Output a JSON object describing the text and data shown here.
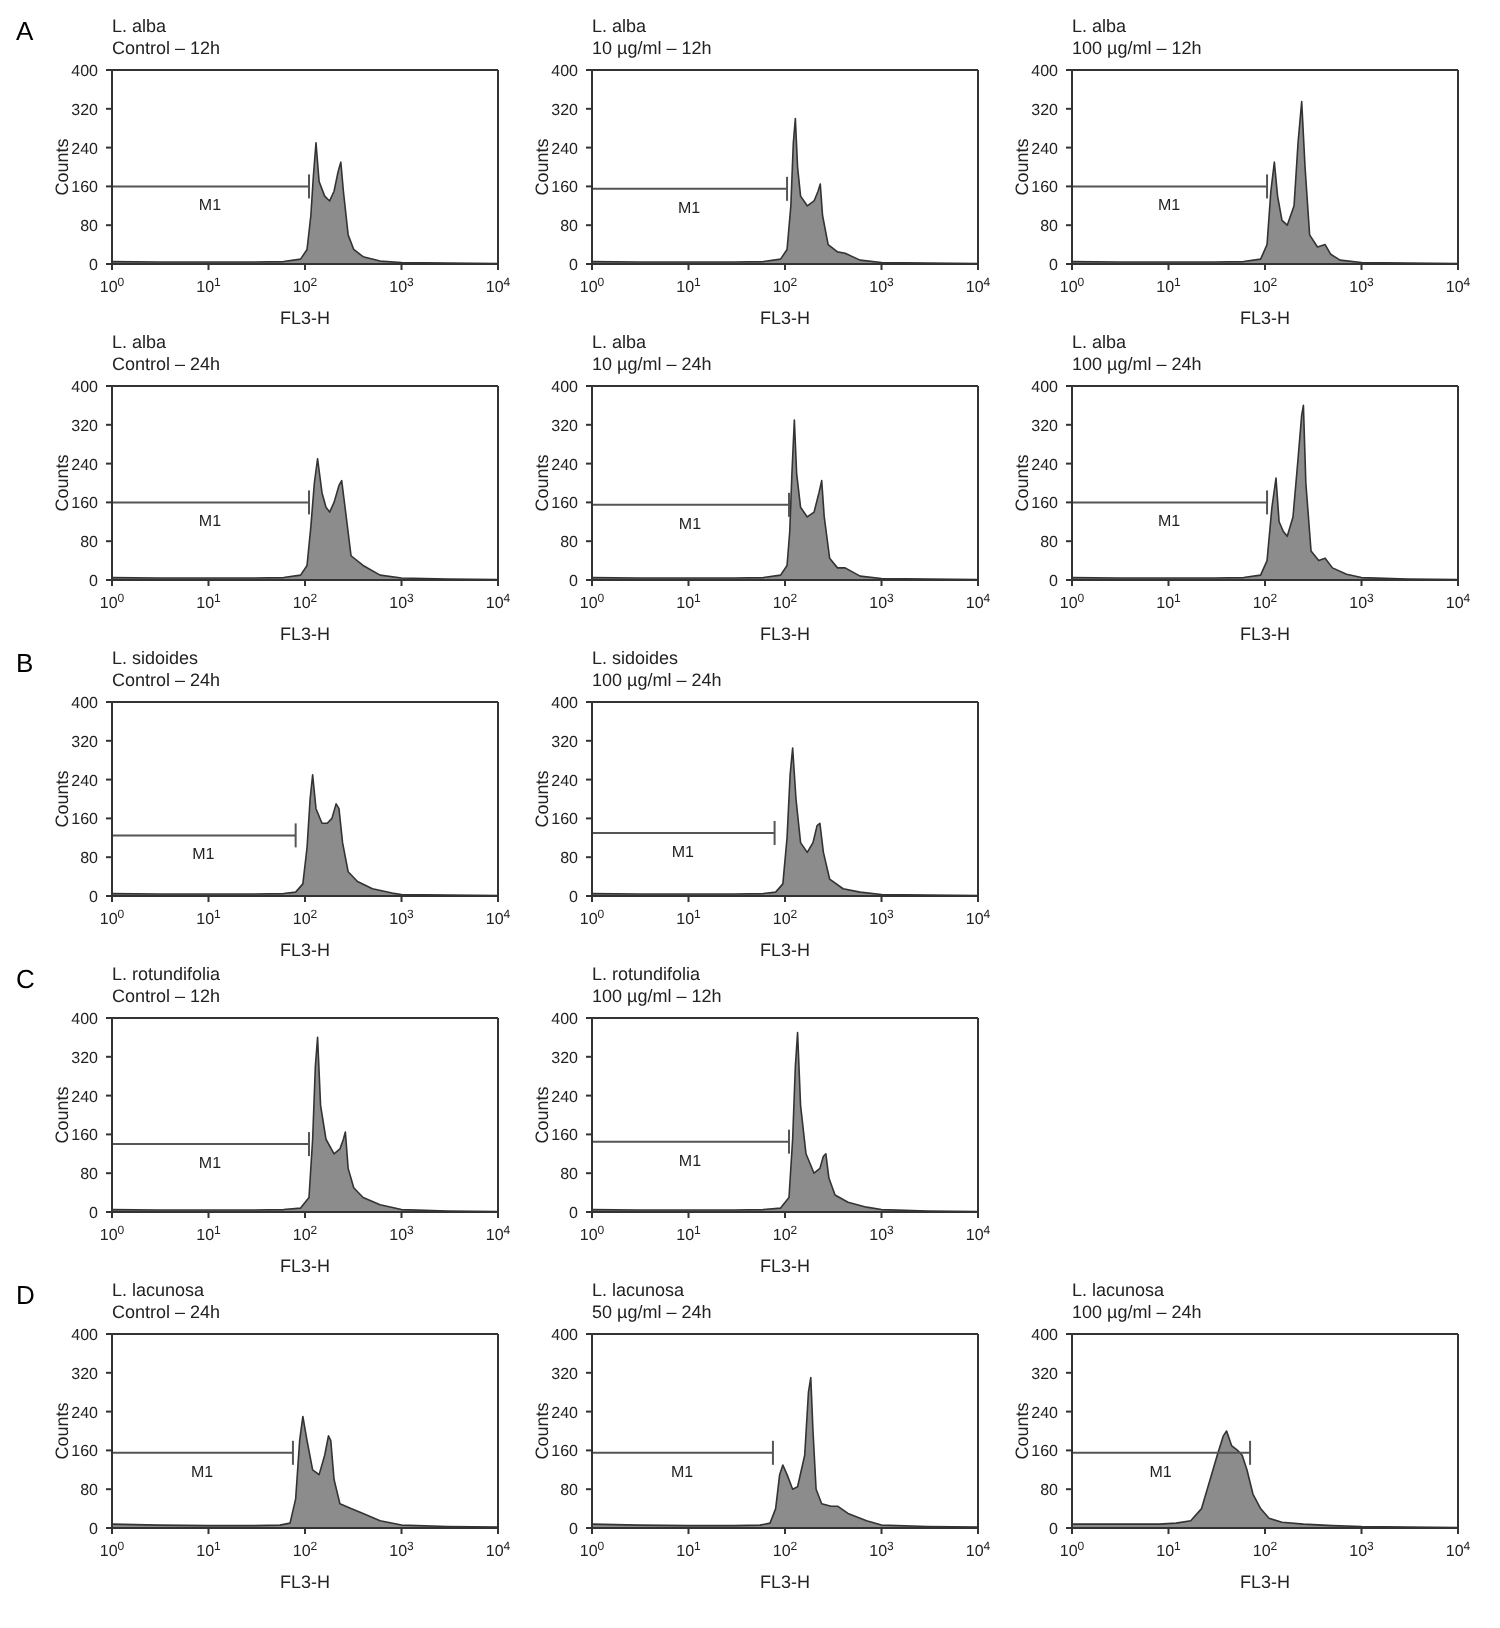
{
  "chart_data": [
    {
      "type": "area",
      "title": "L. alba",
      "subtitle": "Control – 12h",
      "annotations": [
        "A"
      ],
      "xlabel": "FL3-H",
      "ylabel": "Counts",
      "xlim": [
        1,
        10000
      ],
      "ylim": [
        0,
        400
      ],
      "log": "x",
      "xticks": [
        {
          "value": 1,
          "label": "10$^{0}$"
        },
        {
          "value": 10,
          "label": "10$^{1}$"
        },
        {
          "value": 100,
          "label": "10$^{2}$"
        },
        {
          "value": 1000,
          "label": "10$^{3}$"
        },
        {
          "value": 10000,
          "label": "10$^{4}$"
        }
      ],
      "yticks": [
        0,
        80,
        160,
        240,
        320,
        400
      ],
      "series": [
        {
          "color": "#8c8c8c",
          "x": [
            1,
            3,
            10,
            30,
            60,
            90,
            105,
            115,
            122,
            130,
            140,
            160,
            180,
            200,
            220,
            235,
            250,
            280,
            320,
            400,
            600,
            1000,
            3000,
            10000
          ],
          "values": [
            5,
            4,
            4,
            4,
            5,
            10,
            30,
            100,
            180,
            250,
            170,
            140,
            130,
            150,
            190,
            210,
            150,
            60,
            30,
            15,
            6,
            3,
            2,
            1
          ]
        },
        {
          "type": "line",
          "name": "M1",
          "color": "#555555",
          "x": [
            1,
            110
          ],
          "values": [
            160,
            160
          ]
        }
      ]
    },
    {
      "type": "area",
      "title": "L. alba",
      "subtitle": "10 µg/ml – 12h",
      "xlabel": "FL3-H",
      "ylabel": "Counts",
      "xlim": [
        1,
        10000
      ],
      "ylim": [
        0,
        400
      ],
      "log": "x",
      "xticks": [
        {
          "value": 1,
          "label": "10$^{0}$"
        },
        {
          "value": 10,
          "label": "10$^{1}$"
        },
        {
          "value": 100,
          "label": "10$^{2}$"
        },
        {
          "value": 1000,
          "label": "10$^{3}$"
        },
        {
          "value": 10000,
          "label": "10$^{4}$"
        }
      ],
      "yticks": [
        0,
        80,
        160,
        240,
        320,
        400
      ],
      "series": [
        {
          "color": "#8c8c8c",
          "x": [
            1,
            3,
            10,
            30,
            60,
            90,
            105,
            115,
            122,
            128,
            135,
            145,
            170,
            200,
            220,
            232,
            245,
            280,
            350,
            420,
            600,
            1000,
            3000,
            10000
          ],
          "values": [
            5,
            4,
            4,
            4,
            5,
            10,
            30,
            120,
            250,
            300,
            200,
            140,
            120,
            130,
            150,
            165,
            100,
            40,
            25,
            22,
            8,
            3,
            2,
            1
          ]
        },
        {
          "type": "line",
          "name": "M1",
          "color": "#555555",
          "x": [
            1,
            105
          ],
          "values": [
            155,
            155
          ]
        }
      ]
    },
    {
      "type": "area",
      "title": "L. alba",
      "subtitle": "100 µg/ml – 12h",
      "xlabel": "FL3-H",
      "ylabel": "Counts",
      "xlim": [
        1,
        10000
      ],
      "ylim": [
        0,
        400
      ],
      "log": "x",
      "xticks": [
        {
          "value": 1,
          "label": "10$^{0}$"
        },
        {
          "value": 10,
          "label": "10$^{1}$"
        },
        {
          "value": 100,
          "label": "10$^{2}$"
        },
        {
          "value": 1000,
          "label": "10$^{3}$"
        },
        {
          "value": 10000,
          "label": "10$^{4}$"
        }
      ],
      "yticks": [
        0,
        80,
        160,
        240,
        320,
        400
      ],
      "series": [
        {
          "color": "#8c8c8c",
          "x": [
            1,
            3,
            10,
            30,
            60,
            90,
            105,
            115,
            125,
            135,
            150,
            170,
            200,
            220,
            240,
            260,
            290,
            350,
            420,
            480,
            600,
            1000,
            3000,
            10000
          ],
          "values": [
            5,
            4,
            4,
            4,
            5,
            10,
            40,
            150,
            210,
            140,
            90,
            80,
            120,
            250,
            335,
            200,
            60,
            35,
            40,
            20,
            8,
            3,
            2,
            1
          ]
        },
        {
          "type": "line",
          "name": "M1",
          "color": "#555555",
          "x": [
            1,
            105
          ],
          "values": [
            160,
            160
          ]
        }
      ]
    },
    {
      "type": "area",
      "title": "L. alba",
      "subtitle": "Control – 24h",
      "xlabel": "FL3-H",
      "ylabel": "Counts",
      "xlim": [
        1,
        10000
      ],
      "ylim": [
        0,
        400
      ],
      "log": "x",
      "xticks": [
        {
          "value": 1,
          "label": "10$^{0}$"
        },
        {
          "value": 10,
          "label": "10$^{1}$"
        },
        {
          "value": 100,
          "label": "10$^{2}$"
        },
        {
          "value": 1000,
          "label": "10$^{3}$"
        },
        {
          "value": 10000,
          "label": "10$^{4}$"
        }
      ],
      "yticks": [
        0,
        80,
        160,
        240,
        320,
        400
      ],
      "series": [
        {
          "color": "#8c8c8c",
          "x": [
            1,
            3,
            10,
            30,
            60,
            90,
            105,
            115,
            125,
            135,
            150,
            165,
            180,
            200,
            225,
            240,
            260,
            300,
            400,
            600,
            1000,
            3000,
            10000
          ],
          "values": [
            5,
            4,
            4,
            4,
            5,
            10,
            30,
            110,
            200,
            250,
            180,
            150,
            140,
            160,
            195,
            205,
            150,
            50,
            30,
            10,
            4,
            2,
            1
          ]
        },
        {
          "type": "line",
          "name": "M1",
          "color": "#555555",
          "x": [
            1,
            110
          ],
          "values": [
            160,
            160
          ]
        }
      ]
    },
    {
      "type": "area",
      "title": "L. alba",
      "subtitle": "10 µg/ml – 24h",
      "xlabel": "FL3-H",
      "ylabel": "Counts",
      "xlim": [
        1,
        10000
      ],
      "ylim": [
        0,
        400
      ],
      "log": "x",
      "xticks": [
        {
          "value": 1,
          "label": "10$^{0}$"
        },
        {
          "value": 10,
          "label": "10$^{1}$"
        },
        {
          "value": 100,
          "label": "10$^{2}$"
        },
        {
          "value": 1000,
          "label": "10$^{3}$"
        },
        {
          "value": 10000,
          "label": "10$^{4}$"
        }
      ],
      "yticks": [
        0,
        80,
        160,
        240,
        320,
        400
      ],
      "series": [
        {
          "color": "#8c8c8c",
          "x": [
            1,
            3,
            10,
            30,
            60,
            90,
            105,
            112,
            118,
            125,
            132,
            145,
            170,
            200,
            225,
            240,
            255,
            290,
            350,
            420,
            600,
            1000,
            3000,
            10000
          ],
          "values": [
            5,
            4,
            4,
            4,
            5,
            10,
            30,
            100,
            220,
            330,
            220,
            150,
            130,
            140,
            180,
            205,
            130,
            45,
            25,
            25,
            8,
            3,
            2,
            1
          ]
        },
        {
          "type": "line",
          "name": "M1",
          "color": "#555555",
          "x": [
            1,
            110
          ],
          "values": [
            155,
            155
          ]
        }
      ]
    },
    {
      "type": "area",
      "title": "L. alba",
      "subtitle": "100 µg/ml – 24h",
      "xlabel": "FL3-H",
      "ylabel": "Counts",
      "xlim": [
        1,
        10000
      ],
      "ylim": [
        0,
        400
      ],
      "log": "x",
      "xticks": [
        {
          "value": 1,
          "label": "10$^{0}$"
        },
        {
          "value": 10,
          "label": "10$^{1}$"
        },
        {
          "value": 100,
          "label": "10$^{2}$"
        },
        {
          "value": 1000,
          "label": "10$^{3}$"
        },
        {
          "value": 10000,
          "label": "10$^{4}$"
        }
      ],
      "yticks": [
        0,
        80,
        160,
        240,
        320,
        400
      ],
      "series": [
        {
          "color": "#8c8c8c",
          "x": [
            1,
            3,
            10,
            30,
            60,
            90,
            105,
            118,
            130,
            140,
            155,
            170,
            195,
            220,
            240,
            250,
            265,
            300,
            360,
            420,
            500,
            700,
            1000,
            3000,
            10000
          ],
          "values": [
            5,
            4,
            4,
            4,
            5,
            10,
            40,
            150,
            210,
            120,
            100,
            90,
            130,
            250,
            340,
            360,
            200,
            60,
            40,
            45,
            25,
            12,
            5,
            2,
            1
          ]
        },
        {
          "type": "line",
          "name": "M1",
          "color": "#555555",
          "x": [
            1,
            105
          ],
          "values": [
            160,
            160
          ]
        }
      ]
    },
    {
      "type": "area",
      "title": "L. sidoides",
      "subtitle": "Control – 24h",
      "annotations": [
        "B"
      ],
      "xlabel": "FL3-H",
      "ylabel": "Counts",
      "xlim": [
        1,
        10000
      ],
      "ylim": [
        0,
        400
      ],
      "log": "x",
      "xticks": [
        {
          "value": 1,
          "label": "10$^{0}$"
        },
        {
          "value": 10,
          "label": "10$^{1}$"
        },
        {
          "value": 100,
          "label": "10$^{2}$"
        },
        {
          "value": 1000,
          "label": "10$^{3}$"
        },
        {
          "value": 10000,
          "label": "10$^{4}$"
        }
      ],
      "yticks": [
        0,
        80,
        160,
        240,
        320,
        400
      ],
      "series": [
        {
          "color": "#8c8c8c",
          "x": [
            1,
            3,
            10,
            30,
            60,
            80,
            95,
            105,
            113,
            120,
            130,
            150,
            170,
            190,
            210,
            225,
            245,
            280,
            350,
            500,
            800,
            1000,
            3000,
            10000
          ],
          "values": [
            5,
            4,
            4,
            4,
            5,
            8,
            25,
            100,
            200,
            250,
            180,
            150,
            150,
            160,
            190,
            180,
            110,
            50,
            30,
            15,
            6,
            3,
            2,
            1
          ]
        },
        {
          "type": "line",
          "name": "M1",
          "color": "#555555",
          "x": [
            1,
            80
          ],
          "values": [
            125,
            125
          ]
        }
      ]
    },
    {
      "type": "area",
      "title": "L. sidoides",
      "subtitle": "100 µg/ml – 24h",
      "xlabel": "FL3-H",
      "ylabel": "Counts",
      "xlim": [
        1,
        10000
      ],
      "ylim": [
        0,
        400
      ],
      "log": "x",
      "xticks": [
        {
          "value": 1,
          "label": "10$^{0}$"
        },
        {
          "value": 10,
          "label": "10$^{1}$"
        },
        {
          "value": 100,
          "label": "10$^{2}$"
        },
        {
          "value": 1000,
          "label": "10$^{3}$"
        },
        {
          "value": 10000,
          "label": "10$^{4}$"
        }
      ],
      "yticks": [
        0,
        80,
        160,
        240,
        320,
        400
      ],
      "series": [
        {
          "color": "#8c8c8c",
          "x": [
            1,
            3,
            10,
            30,
            60,
            80,
            95,
            105,
            113,
            120,
            130,
            145,
            170,
            195,
            215,
            230,
            250,
            290,
            400,
            600,
            1000,
            3000,
            10000
          ],
          "values": [
            5,
            4,
            4,
            4,
            5,
            8,
            25,
            120,
            250,
            305,
            200,
            110,
            90,
            110,
            145,
            150,
            90,
            35,
            15,
            8,
            3,
            2,
            1
          ]
        },
        {
          "type": "line",
          "name": "M1",
          "color": "#555555",
          "x": [
            1,
            78
          ],
          "values": [
            130,
            130
          ]
        }
      ]
    },
    {
      "type": "area",
      "title": "L. rotundifolia",
      "subtitle": "Control – 12h",
      "annotations": [
        "C"
      ],
      "xlabel": "FL3-H",
      "ylabel": "Counts",
      "xlim": [
        1,
        10000
      ],
      "ylim": [
        0,
        400
      ],
      "log": "x",
      "xticks": [
        {
          "value": 1,
          "label": "10$^{0}$"
        },
        {
          "value": 10,
          "label": "10$^{1}$"
        },
        {
          "value": 100,
          "label": "10$^{2}$"
        },
        {
          "value": 1000,
          "label": "10$^{3}$"
        },
        {
          "value": 10000,
          "label": "10$^{4}$"
        }
      ],
      "yticks": [
        0,
        80,
        160,
        240,
        320,
        400
      ],
      "series": [
        {
          "color": "#8c8c8c",
          "x": [
            1,
            3,
            10,
            30,
            60,
            90,
            110,
            120,
            128,
            135,
            145,
            165,
            200,
            230,
            250,
            262,
            280,
            320,
            400,
            600,
            1000,
            3000,
            10000
          ],
          "values": [
            5,
            4,
            4,
            4,
            5,
            8,
            30,
            150,
            300,
            360,
            220,
            150,
            120,
            130,
            150,
            165,
            90,
            50,
            30,
            15,
            5,
            2,
            1
          ]
        },
        {
          "type": "line",
          "name": "M1",
          "color": "#555555",
          "x": [
            1,
            110
          ],
          "values": [
            140,
            140
          ]
        }
      ]
    },
    {
      "type": "area",
      "title": "L. rotundifolia",
      "subtitle": "100 µg/ml – 12h",
      "xlabel": "FL3-H",
      "ylabel": "Counts",
      "xlim": [
        1,
        10000
      ],
      "ylim": [
        0,
        400
      ],
      "log": "x",
      "xticks": [
        {
          "value": 1,
          "label": "10$^{0}$"
        },
        {
          "value": 10,
          "label": "10$^{1}$"
        },
        {
          "value": 100,
          "label": "10$^{2}$"
        },
        {
          "value": 1000,
          "label": "10$^{3}$"
        },
        {
          "value": 10000,
          "label": "10$^{4}$"
        }
      ],
      "yticks": [
        0,
        80,
        160,
        240,
        320,
        400
      ],
      "series": [
        {
          "color": "#8c8c8c",
          "x": [
            1,
            3,
            10,
            30,
            60,
            90,
            110,
            120,
            128,
            135,
            145,
            165,
            200,
            230,
            250,
            265,
            285,
            330,
            450,
            700,
            1000,
            3000,
            10000
          ],
          "values": [
            5,
            4,
            4,
            4,
            5,
            8,
            30,
            150,
            300,
            370,
            220,
            120,
            80,
            90,
            115,
            120,
            70,
            35,
            20,
            10,
            5,
            2,
            1
          ]
        },
        {
          "type": "line",
          "name": "M1",
          "color": "#555555",
          "x": [
            1,
            110
          ],
          "values": [
            145,
            145
          ]
        }
      ]
    },
    {
      "type": "area",
      "title": "L. lacunosa",
      "subtitle": "Control – 24h",
      "annotations": [
        "D"
      ],
      "xlabel": "FL3-H",
      "ylabel": "Counts",
      "xlim": [
        1,
        10000
      ],
      "ylim": [
        0,
        400
      ],
      "log": "x",
      "xticks": [
        {
          "value": 1,
          "label": "10$^{0}$"
        },
        {
          "value": 10,
          "label": "10$^{1}$"
        },
        {
          "value": 100,
          "label": "10$^{2}$"
        },
        {
          "value": 1000,
          "label": "10$^{3}$"
        },
        {
          "value": 10000,
          "label": "10$^{4}$"
        }
      ],
      "yticks": [
        0,
        80,
        160,
        240,
        320,
        400
      ],
      "series": [
        {
          "color": "#8c8c8c",
          "x": [
            1,
            3,
            10,
            30,
            55,
            70,
            80,
            88,
            95,
            105,
            120,
            140,
            160,
            175,
            185,
            200,
            230,
            300,
            400,
            600,
            1000,
            3000,
            10000
          ],
          "values": [
            8,
            6,
            5,
            5,
            6,
            10,
            60,
            180,
            230,
            180,
            120,
            110,
            150,
            190,
            180,
            100,
            50,
            40,
            30,
            15,
            6,
            3,
            2
          ]
        },
        {
          "type": "line",
          "name": "M1",
          "color": "#555555",
          "x": [
            1,
            75
          ],
          "values": [
            155,
            155
          ]
        }
      ]
    },
    {
      "type": "area",
      "title": "L. lacunosa",
      "subtitle": "50 µg/ml – 24h",
      "xlabel": "FL3-H",
      "ylabel": "Counts",
      "xlim": [
        1,
        10000
      ],
      "ylim": [
        0,
        400
      ],
      "log": "x",
      "xticks": [
        {
          "value": 1,
          "label": "10$^{0}$"
        },
        {
          "value": 10,
          "label": "10$^{1}$"
        },
        {
          "value": 100,
          "label": "10$^{2}$"
        },
        {
          "value": 1000,
          "label": "10$^{3}$"
        },
        {
          "value": 10000,
          "label": "10$^{4}$"
        }
      ],
      "yticks": [
        0,
        80,
        160,
        240,
        320,
        400
      ],
      "series": [
        {
          "color": "#8c8c8c",
          "x": [
            1,
            3,
            10,
            30,
            55,
            70,
            80,
            88,
            95,
            105,
            120,
            135,
            160,
            175,
            185,
            195,
            210,
            240,
            300,
            350,
            450,
            700,
            1000,
            3000,
            10000
          ],
          "values": [
            8,
            6,
            5,
            5,
            6,
            10,
            40,
            110,
            130,
            110,
            80,
            85,
            150,
            280,
            310,
            200,
            80,
            50,
            45,
            45,
            30,
            15,
            6,
            3,
            2
          ]
        },
        {
          "type": "line",
          "name": "M1",
          "color": "#555555",
          "x": [
            1,
            75
          ],
          "values": [
            155,
            155
          ]
        }
      ]
    },
    {
      "type": "area",
      "title": "L. lacunosa",
      "subtitle": "100 µg/ml – 24h",
      "xlabel": "FL3-H",
      "ylabel": "Counts",
      "xlim": [
        1,
        10000
      ],
      "ylim": [
        0,
        400
      ],
      "log": "x",
      "xticks": [
        {
          "value": 1,
          "label": "10$^{0}$"
        },
        {
          "value": 10,
          "label": "10$^{1}$"
        },
        {
          "value": 100,
          "label": "10$^{2}$"
        },
        {
          "value": 1000,
          "label": "10$^{3}$"
        },
        {
          "value": 10000,
          "label": "10$^{4}$"
        }
      ],
      "yticks": [
        0,
        80,
        160,
        240,
        320,
        400
      ],
      "series": [
        {
          "color": "#8c8c8c",
          "x": [
            1,
            3,
            8,
            12,
            17,
            22,
            27,
            32,
            37,
            40,
            45,
            52,
            58,
            65,
            75,
            90,
            110,
            150,
            250,
            500,
            1000,
            3000,
            10000
          ],
          "values": [
            8,
            8,
            8,
            10,
            15,
            40,
            100,
            150,
            190,
            200,
            170,
            160,
            150,
            120,
            70,
            40,
            20,
            12,
            8,
            5,
            3,
            2,
            1
          ]
        },
        {
          "type": "line",
          "name": "M1",
          "color": "#555555",
          "x": [
            1,
            70
          ],
          "values": [
            155,
            155
          ]
        }
      ]
    }
  ]
}
